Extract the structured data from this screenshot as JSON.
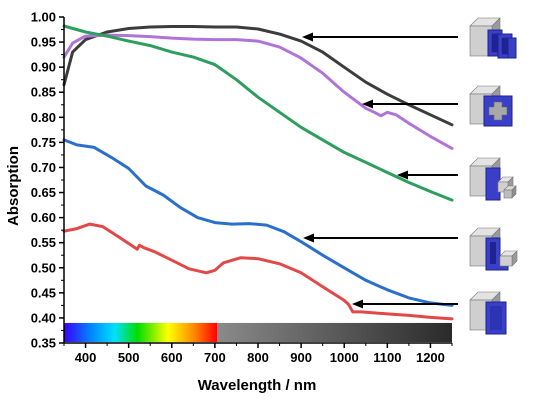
{
  "chart_data": {
    "type": "line",
    "title": "",
    "xlabel": "Wavelength / nm",
    "ylabel": "Absorption",
    "xlim": [
      350,
      1250
    ],
    "ylim": [
      0.35,
      1.0
    ],
    "xticks": [
      400,
      500,
      600,
      700,
      800,
      900,
      1000,
      1100,
      1200
    ],
    "yticks": [
      0.35,
      0.4,
      0.45,
      0.5,
      0.55,
      0.6,
      0.65,
      0.7,
      0.75,
      0.8,
      0.85,
      0.9,
      0.95,
      1.0
    ],
    "grid": false,
    "series": [
      {
        "color": "#3c3c3c",
        "x": [
          350,
          370,
          400,
          450,
          500,
          550,
          600,
          650,
          700,
          750,
          800,
          850,
          900,
          950,
          1000,
          1050,
          1100,
          1150,
          1200,
          1250
        ],
        "y": [
          0.865,
          0.93,
          0.955,
          0.97,
          0.977,
          0.98,
          0.981,
          0.981,
          0.98,
          0.98,
          0.976,
          0.966,
          0.952,
          0.93,
          0.9,
          0.87,
          0.846,
          0.825,
          0.805,
          0.785
        ]
      },
      {
        "color": "#b074d8",
        "x": [
          350,
          370,
          400,
          450,
          500,
          550,
          600,
          650,
          700,
          750,
          800,
          850,
          900,
          950,
          1000,
          1050,
          1070,
          1085,
          1100,
          1120,
          1150,
          1200,
          1250
        ],
        "y": [
          0.92,
          0.948,
          0.962,
          0.964,
          0.963,
          0.961,
          0.958,
          0.956,
          0.955,
          0.955,
          0.952,
          0.94,
          0.918,
          0.888,
          0.85,
          0.818,
          0.81,
          0.803,
          0.81,
          0.805,
          0.788,
          0.762,
          0.738
        ]
      },
      {
        "color": "#2e9e5e",
        "x": [
          350,
          400,
          450,
          500,
          550,
          600,
          650,
          700,
          750,
          800,
          850,
          900,
          950,
          1000,
          1050,
          1100,
          1150,
          1200,
          1250
        ],
        "y": [
          0.982,
          0.97,
          0.962,
          0.952,
          0.943,
          0.93,
          0.92,
          0.905,
          0.875,
          0.84,
          0.81,
          0.78,
          0.755,
          0.73,
          0.71,
          0.69,
          0.67,
          0.652,
          0.635
        ]
      },
      {
        "color": "#2a6fcc",
        "x": [
          350,
          380,
          420,
          460,
          500,
          540,
          580,
          620,
          660,
          700,
          740,
          780,
          820,
          860,
          900,
          950,
          1000,
          1050,
          1100,
          1150,
          1200,
          1250
        ],
        "y": [
          0.755,
          0.745,
          0.74,
          0.72,
          0.698,
          0.663,
          0.645,
          0.62,
          0.6,
          0.59,
          0.587,
          0.588,
          0.585,
          0.572,
          0.552,
          0.525,
          0.5,
          0.475,
          0.456,
          0.44,
          0.43,
          0.425
        ]
      },
      {
        "color": "#e24848",
        "x": [
          350,
          380,
          410,
          440,
          480,
          520,
          525,
          535,
          560,
          600,
          640,
          680,
          700,
          720,
          760,
          800,
          850,
          900,
          950,
          1000,
          1010,
          1020,
          1040,
          1100,
          1150,
          1200,
          1250
        ],
        "y": [
          0.573,
          0.578,
          0.587,
          0.582,
          0.56,
          0.537,
          0.545,
          0.54,
          0.532,
          0.515,
          0.498,
          0.49,
          0.495,
          0.51,
          0.52,
          0.518,
          0.508,
          0.49,
          0.462,
          0.435,
          0.427,
          0.412,
          0.412,
          0.408,
          0.405,
          0.401,
          0.398
        ]
      }
    ]
  },
  "icons": [
    {
      "name": "box-nested-frames-icon"
    },
    {
      "name": "box-cross-cutout-icon"
    },
    {
      "name": "box-small-protrusion-icon"
    },
    {
      "name": "box-l-shape-icon"
    },
    {
      "name": "box-blue-face-icon"
    }
  ],
  "colors": {
    "axis": "#000000",
    "cube_gray": "#9a9a9a",
    "cube_light": "#cfcfcf",
    "cube_blue": "#3a3fc8",
    "cube_blue_dark": "#1f2290"
  }
}
